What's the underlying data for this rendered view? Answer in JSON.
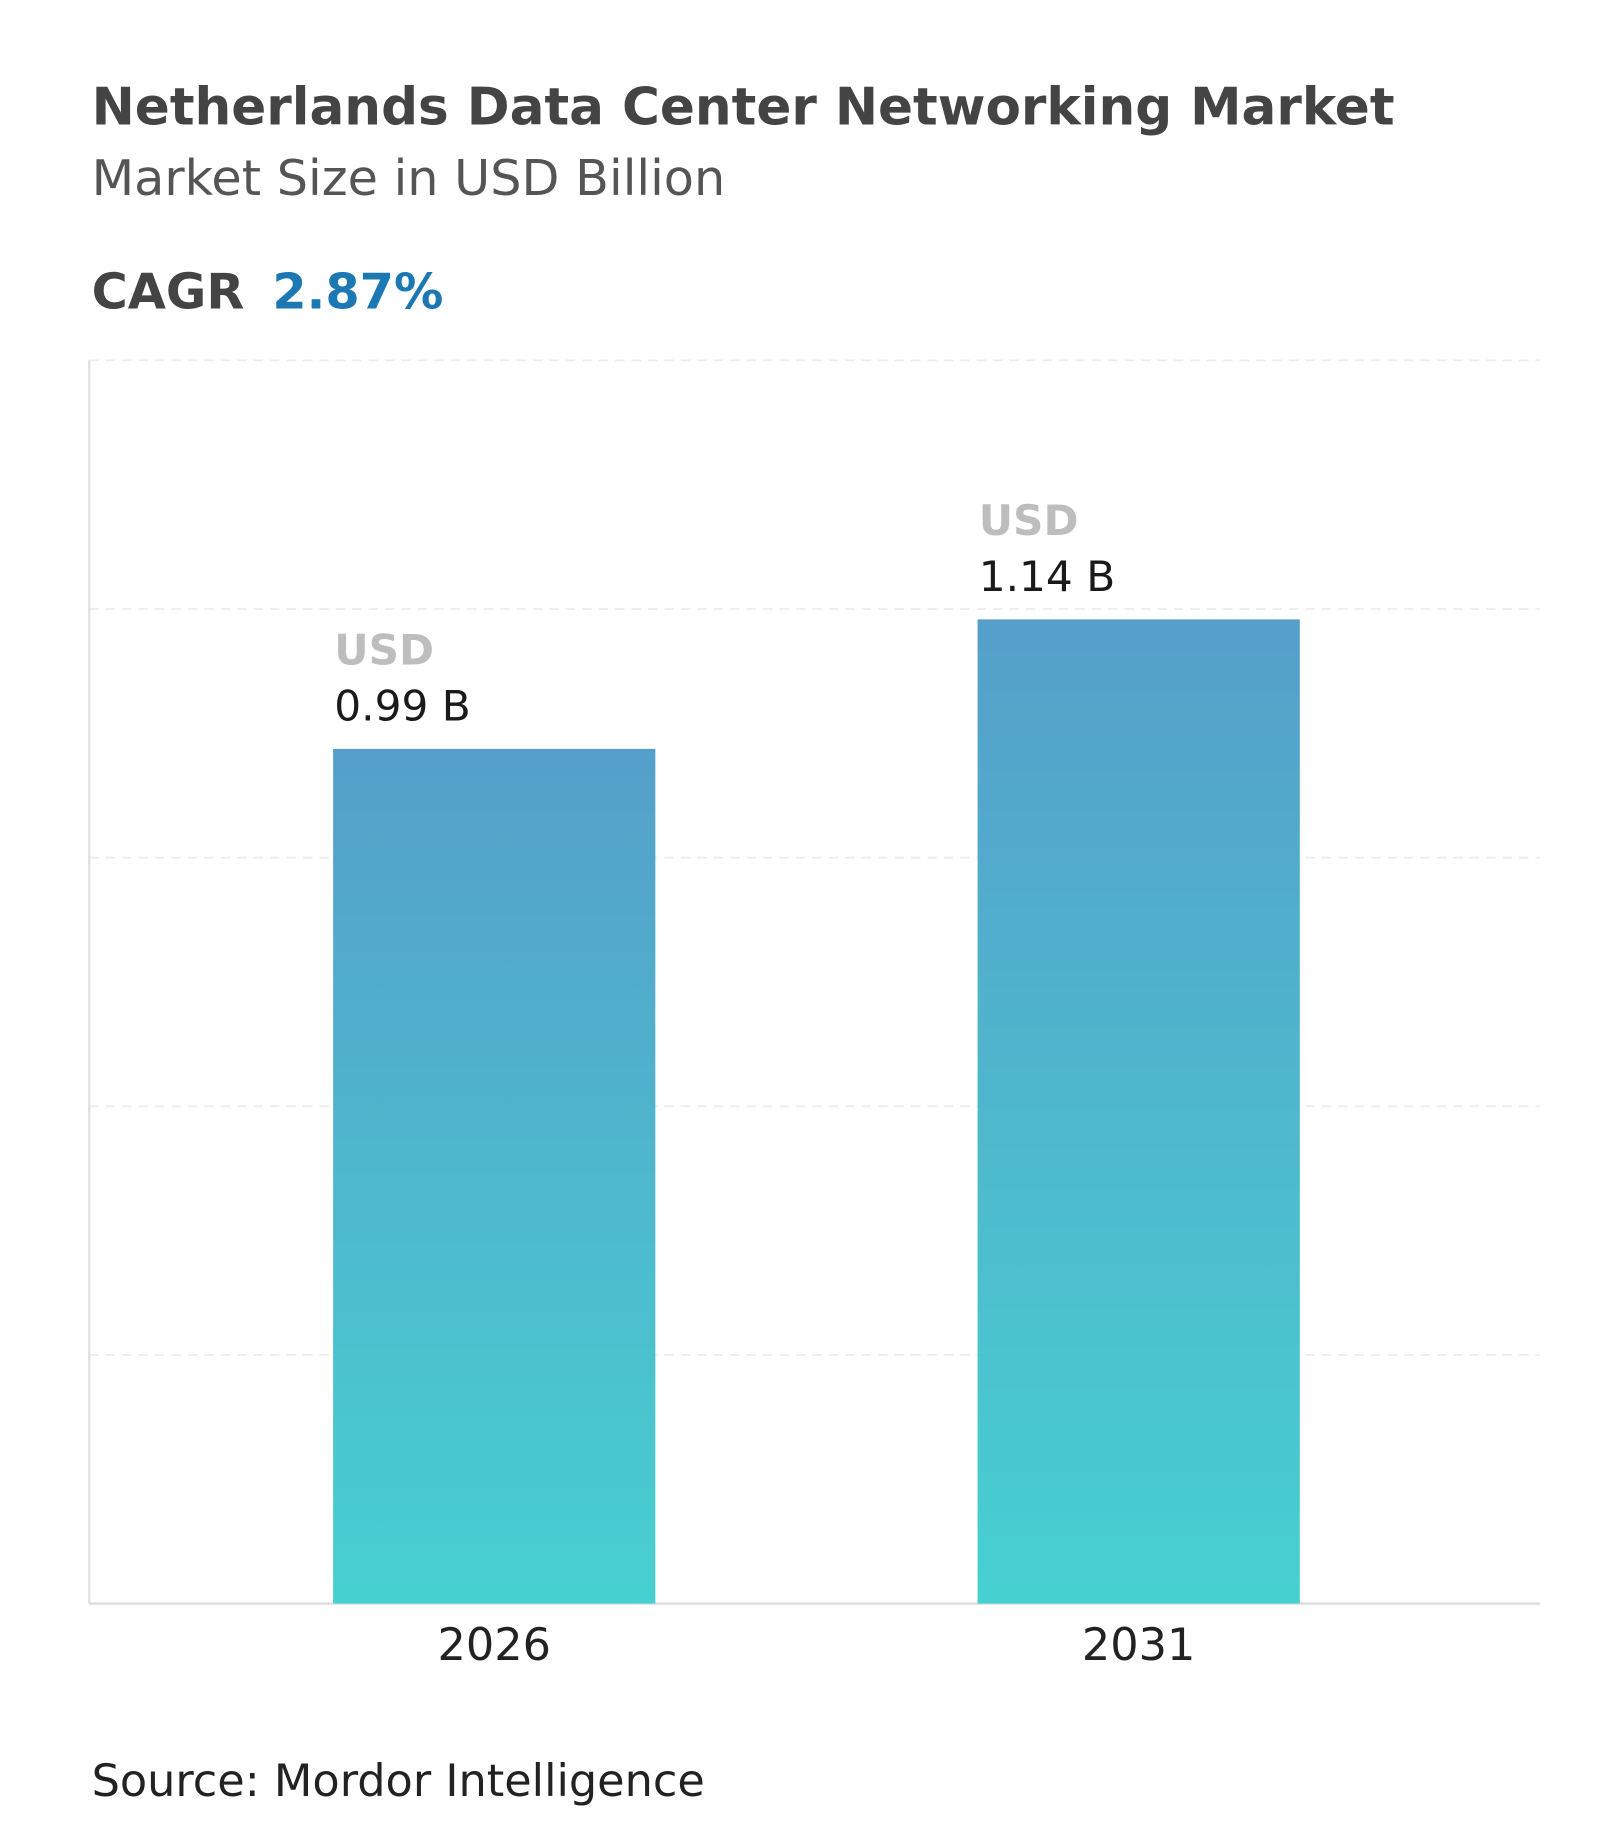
{
  "chart_data": {
    "type": "bar",
    "title": "Netherlands Data Center Networking Market",
    "subtitle": "Market Size in USD Billion",
    "cagr_label": "CAGR",
    "cagr": "2.87%",
    "categories": [
      "2026",
      "2031"
    ],
    "values": [
      0.99,
      1.14
    ],
    "value_labels": [
      "0.99 B",
      "1.14 B"
    ],
    "value_prefix": "USD",
    "color": [
      "#559fca",
      "#47d0d0"
    ],
    "ylim": [
      0,
      1.44
    ],
    "yticks": [
      0,
      0.288,
      0.576,
      0.864,
      1.152,
      1.44
    ],
    "grid": true,
    "source": "Source: Mordor Intelligence"
  }
}
